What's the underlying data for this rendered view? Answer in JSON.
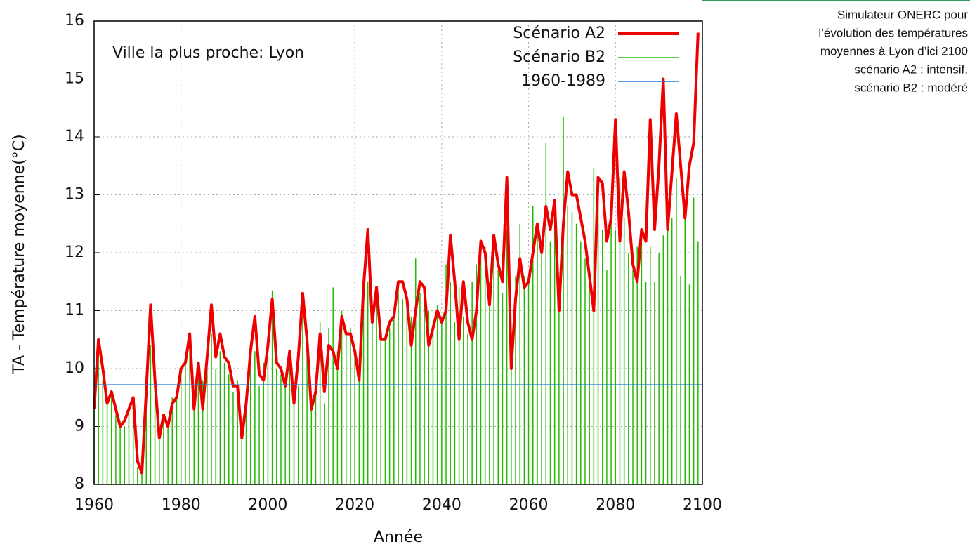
{
  "chart_data": {
    "type": "line",
    "annotation": "Ville la plus proche: Lyon",
    "xlabel": "Année",
    "ylabel": "TA - Température moyenne(°C)",
    "xlim": [
      1960,
      2100
    ],
    "xticks": [
      1960,
      1980,
      2000,
      2020,
      2040,
      2060,
      2080,
      2100
    ],
    "ylim": [
      8,
      16
    ],
    "yticks": [
      8,
      9,
      10,
      11,
      12,
      13,
      14,
      15,
      16
    ],
    "grid": true,
    "legend": "top-right",
    "x": [
      1960,
      1961,
      1962,
      1963,
      1964,
      1965,
      1966,
      1967,
      1968,
      1969,
      1970,
      1971,
      1972,
      1973,
      1974,
      1975,
      1976,
      1977,
      1978,
      1979,
      1980,
      1981,
      1982,
      1983,
      1984,
      1985,
      1986,
      1987,
      1988,
      1989,
      1990,
      1991,
      1992,
      1993,
      1994,
      1995,
      1996,
      1997,
      1998,
      1999,
      2000,
      2001,
      2002,
      2003,
      2004,
      2005,
      2006,
      2007,
      2008,
      2009,
      2010,
      2011,
      2012,
      2013,
      2014,
      2015,
      2016,
      2017,
      2018,
      2019,
      2020,
      2021,
      2022,
      2023,
      2024,
      2025,
      2026,
      2027,
      2028,
      2029,
      2030,
      2031,
      2032,
      2033,
      2034,
      2035,
      2036,
      2037,
      2038,
      2039,
      2040,
      2041,
      2042,
      2043,
      2044,
      2045,
      2046,
      2047,
      2048,
      2049,
      2050,
      2051,
      2052,
      2053,
      2054,
      2055,
      2056,
      2057,
      2058,
      2059,
      2060,
      2061,
      2062,
      2063,
      2064,
      2065,
      2066,
      2067,
      2068,
      2069,
      2070,
      2071,
      2072,
      2073,
      2074,
      2075,
      2076,
      2077,
      2078,
      2079,
      2080,
      2081,
      2082,
      2083,
      2084,
      2085,
      2086,
      2087,
      2088,
      2089,
      2090,
      2091,
      2092,
      2093,
      2094,
      2095,
      2096,
      2097,
      2098,
      2099
    ],
    "series": [
      {
        "name": "Scénario A2",
        "color": "#ee0000",
        "style": "line",
        "values": [
          9.3,
          10.5,
          10.0,
          9.4,
          9.6,
          9.3,
          9.0,
          9.1,
          9.3,
          9.5,
          8.4,
          8.2,
          9.6,
          11.1,
          9.8,
          8.8,
          9.2,
          9.0,
          9.4,
          9.5,
          10.0,
          10.1,
          10.6,
          9.3,
          10.1,
          9.3,
          10.2,
          11.1,
          10.2,
          10.6,
          10.2,
          10.1,
          9.7,
          9.7,
          8.8,
          9.4,
          10.3,
          10.9,
          9.9,
          9.8,
          10.4,
          11.2,
          10.1,
          10.0,
          9.7,
          10.3,
          9.4,
          10.2,
          11.3,
          10.5,
          9.3,
          9.6,
          10.6,
          9.6,
          10.4,
          10.3,
          10.0,
          10.9,
          10.6,
          10.6,
          10.3,
          9.8,
          11.4,
          12.4,
          10.8,
          11.4,
          10.5,
          10.5,
          10.8,
          10.9,
          11.5,
          11.5,
          11.2,
          10.4,
          11.0,
          11.5,
          11.4,
          10.4,
          10.7,
          11.0,
          10.8,
          11.0,
          12.3,
          11.5,
          10.5,
          11.5,
          10.8,
          10.5,
          11.0,
          12.2,
          12.0,
          11.1,
          12.3,
          11.8,
          11.5,
          13.3,
          10.0,
          11.2,
          11.9,
          11.4,
          11.5,
          12.0,
          12.5,
          12.0,
          12.8,
          12.4,
          12.9,
          11.0,
          12.5,
          13.4,
          13.0,
          13.0,
          12.6,
          12.2,
          11.6,
          11.0,
          13.3,
          13.2,
          12.2,
          12.6,
          14.3,
          12.2,
          13.4,
          12.7,
          11.8,
          11.5,
          12.4,
          12.2,
          14.3,
          12.4,
          13.5,
          15.0,
          12.4,
          13.4,
          14.4,
          13.5,
          12.6,
          13.5,
          13.9,
          15.8
        ]
      },
      {
        "name": "Scénario B2",
        "color": "#22bb00",
        "style": "impulse",
        "values": [
          9.4,
          10.4,
          9.8,
          9.5,
          9.6,
          9.2,
          9.1,
          9.0,
          9.3,
          9.4,
          8.3,
          8.5,
          9.6,
          10.4,
          9.7,
          8.9,
          9.2,
          9.1,
          9.5,
          9.6,
          10.0,
          10.2,
          10.5,
          9.5,
          9.9,
          9.8,
          10.4,
          10.6,
          10.0,
          10.3,
          10.1,
          9.9,
          9.6,
          9.8,
          9.0,
          9.5,
          10.0,
          10.3,
          9.7,
          10.1,
          10.2,
          11.35,
          10.0,
          9.9,
          9.8,
          10.2,
          9.4,
          9.7,
          10.9,
          10.3,
          9.5,
          9.6,
          10.8,
          9.4,
          10.7,
          11.4,
          10.3,
          11.0,
          10.6,
          10.7,
          10.2,
          9.8,
          11.2,
          11.5,
          11.0,
          11.2,
          10.6,
          10.5,
          10.7,
          11.0,
          11.4,
          11.2,
          11.0,
          10.9,
          11.9,
          11.3,
          11.2,
          11.0,
          10.8,
          11.1,
          10.9,
          11.8,
          11.5,
          10.8,
          11.4,
          10.9,
          10.6,
          11.5,
          11.8,
          11.9,
          12.1,
          11.5,
          12.0,
          11.7,
          11.3,
          12.4,
          10.4,
          11.6,
          12.5,
          11.6,
          11.6,
          12.8,
          12.4,
          12.0,
          13.9,
          12.2,
          12.9,
          11.2,
          14.35,
          12.8,
          12.7,
          12.5,
          12.2,
          11.9,
          11.6,
          13.45,
          12.9,
          12.4,
          11.7,
          12.8,
          12.4,
          13.3,
          12.6,
          12.0,
          11.7,
          12.1,
          12.4,
          11.5,
          12.1,
          11.5,
          12.0,
          12.3,
          12.5,
          12.6,
          13.3,
          11.6,
          12.9,
          11.45,
          12.95,
          12.2
        ]
      }
    ],
    "reference_line": {
      "name": "1960-1989",
      "color": "#1f7ad6",
      "value": 9.72
    }
  },
  "caption": [
    "Simulateur ONERC pour",
    "l’évolution des températures",
    "moyennes à Lyon d’ici 2100",
    "scénario A2 : intensif,",
    "scénario B2 : modéré"
  ]
}
